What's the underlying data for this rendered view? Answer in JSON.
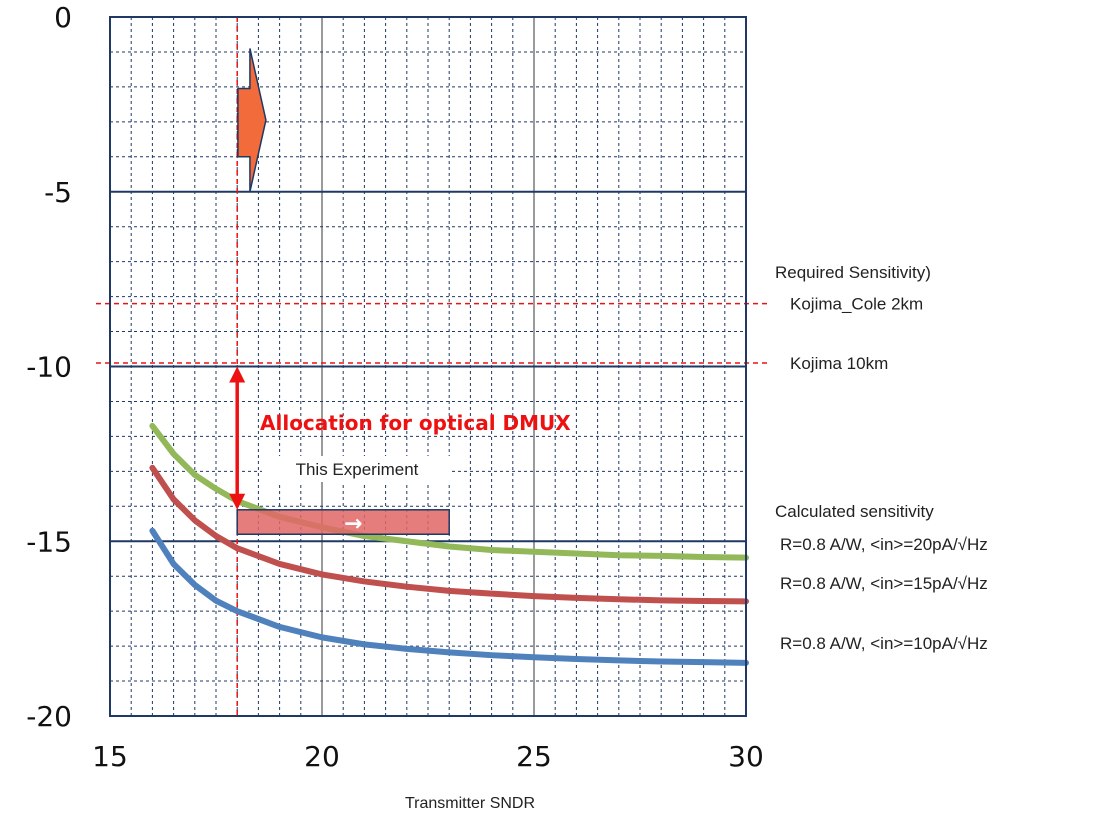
{
  "chart_data": {
    "type": "line",
    "title": "",
    "xlabel": "Transmitter SNDR",
    "ylabel": "",
    "xlim": [
      15,
      30
    ],
    "ylim": [
      -20,
      0
    ],
    "x_ticks": [
      15,
      20,
      25,
      30
    ],
    "y_ticks": [
      0,
      -5,
      -10,
      -15,
      -20
    ],
    "grid": true,
    "series": [
      {
        "name": "R=0.8 A/W, <in>=20pA/√Hz",
        "color": "#93b85a",
        "x": [
          16,
          16.5,
          17,
          17.5,
          18,
          19,
          20,
          21,
          22,
          23,
          24,
          25,
          26,
          27,
          28,
          29,
          30
        ],
        "y": [
          -11.7,
          -12.5,
          -13.1,
          -13.5,
          -13.85,
          -14.3,
          -14.6,
          -14.85,
          -15.0,
          -15.15,
          -15.25,
          -15.3,
          -15.35,
          -15.4,
          -15.42,
          -15.45,
          -15.47
        ]
      },
      {
        "name": "R=0.8 A/W, <in>=15pA/√Hz",
        "color": "#c0504d",
        "x": [
          16,
          16.5,
          17,
          17.5,
          18,
          19,
          20,
          21,
          22,
          23,
          24,
          25,
          26,
          27,
          28,
          29,
          30
        ],
        "y": [
          -12.9,
          -13.8,
          -14.4,
          -14.85,
          -15.2,
          -15.65,
          -15.95,
          -16.15,
          -16.3,
          -16.42,
          -16.5,
          -16.57,
          -16.62,
          -16.66,
          -16.69,
          -16.71,
          -16.72
        ]
      },
      {
        "name": "R=0.8 A/W, <in>=10pA/√Hz",
        "color": "#4f81bd",
        "x": [
          16,
          16.5,
          17,
          17.5,
          18,
          19,
          20,
          21,
          22,
          23,
          24,
          25,
          26,
          27,
          28,
          29,
          30
        ],
        "y": [
          -14.7,
          -15.65,
          -16.25,
          -16.7,
          -17.0,
          -17.45,
          -17.75,
          -17.95,
          -18.08,
          -18.18,
          -18.26,
          -18.32,
          -18.37,
          -18.41,
          -18.44,
          -18.46,
          -18.48
        ]
      }
    ],
    "reference_lines": [
      {
        "label": "Kojima_Cole 2km",
        "y": -8.2,
        "color": "#ee1111"
      },
      {
        "label": "Kojima 10km",
        "y": -9.9,
        "color": "#ee1111"
      }
    ],
    "vertical_reference": {
      "x": 18,
      "color": "#ee1111"
    },
    "allocation_arrow": {
      "label": "Allocation for optical DMUX",
      "x": 18,
      "y_top": -10,
      "y_bottom": -14.1,
      "color": "#ee1111"
    },
    "experiment_box": {
      "label": "This Experiment",
      "x0": 18,
      "x1": 23,
      "y_top": -14.1,
      "y_bottom": -14.8,
      "arrow": "→",
      "color": "#e06666"
    },
    "block_arrow": {
      "x": 18.3,
      "y_top": -0.9,
      "y_bottom": -5.0,
      "color": "#f26b3a"
    },
    "legend_groups": [
      {
        "heading": "Required Sensitivity)"
      },
      {
        "heading": "Calculated sensitivity"
      }
    ]
  }
}
